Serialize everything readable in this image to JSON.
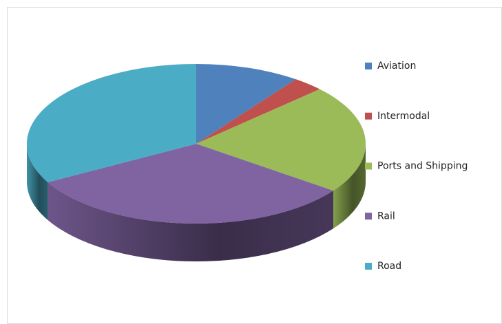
{
  "chart_data": {
    "type": "pie",
    "categories": [
      "Aviation",
      "Intermodal",
      "Ports and Shipping",
      "Rail",
      "Road"
    ],
    "values": [
      10,
      3,
      22,
      32,
      33
    ],
    "colors": [
      "#4f81bd",
      "#c0504d",
      "#9bbb59",
      "#8064a2",
      "#4bacc6"
    ],
    "legend": "right"
  }
}
